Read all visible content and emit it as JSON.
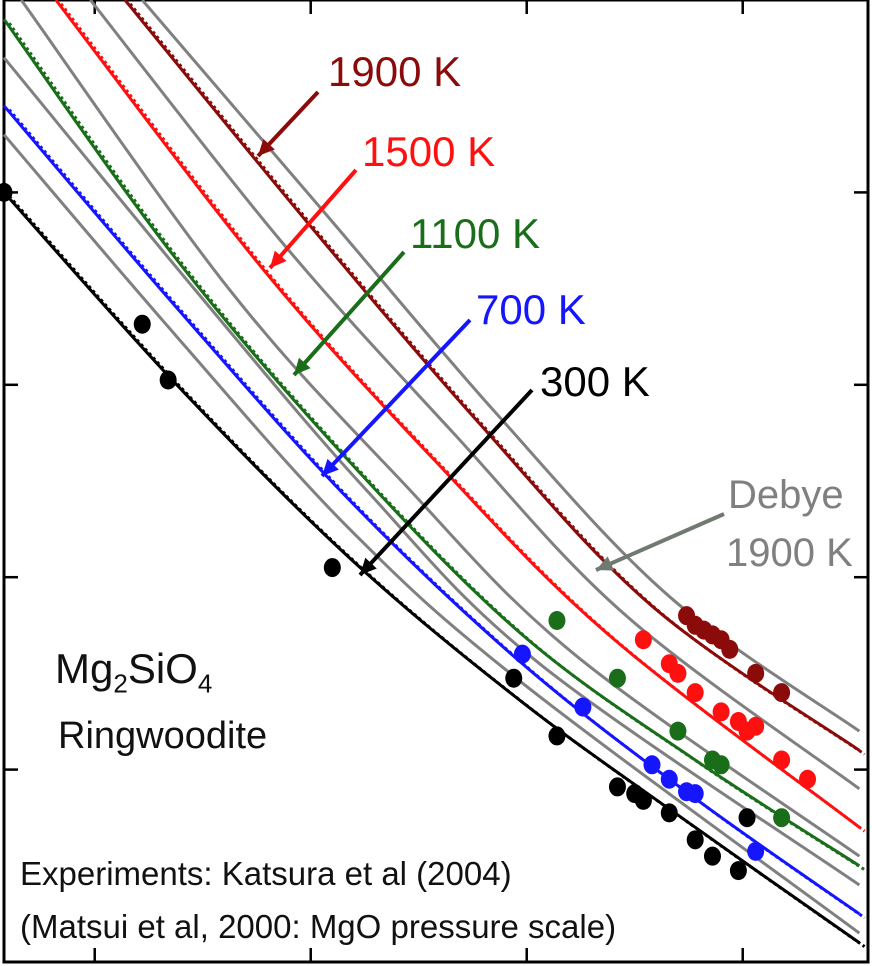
{
  "chart_data": {
    "type": "line",
    "title": "",
    "xlabel": "",
    "ylabel": "",
    "grid": false,
    "x_ticks": 4,
    "y_ticks": 4,
    "mineral": {
      "formula_main": "Mg",
      "sub1": "2",
      "mid": "SiO",
      "sub2": "4",
      "name": "Ringwoodite"
    },
    "caption": [
      "Experiments: Katsura et al (2004)",
      "(Matsui et al, 2000: MgO pressure scale)"
    ],
    "debye_label": [
      "Debye",
      "1900 K"
    ],
    "isotherms": [
      {
        "label": "1900 K",
        "color": "#8b0a0a",
        "line": [
          [
            0.14,
            0.0
          ],
          [
            0.35,
            0.23
          ],
          [
            0.55,
            0.44
          ],
          [
            0.75,
            0.63
          ],
          [
            0.99,
            0.78
          ]
        ],
        "points": [
          [
            0.79,
            0.64
          ],
          [
            0.8,
            0.65
          ],
          [
            0.81,
            0.655
          ],
          [
            0.82,
            0.66
          ],
          [
            0.83,
            0.665
          ],
          [
            0.84,
            0.675
          ],
          [
            0.87,
            0.7
          ],
          [
            0.9,
            0.72
          ]
        ]
      },
      {
        "label": "1500 K",
        "color": "#ff1010",
        "line": [
          [
            0.06,
            0.0
          ],
          [
            0.3,
            0.28
          ],
          [
            0.5,
            0.48
          ],
          [
            0.7,
            0.66
          ],
          [
            0.99,
            0.86
          ]
        ],
        "points": [
          [
            0.74,
            0.665
          ],
          [
            0.77,
            0.69
          ],
          [
            0.78,
            0.7
          ],
          [
            0.8,
            0.72
          ],
          [
            0.83,
            0.74
          ],
          [
            0.85,
            0.75
          ],
          [
            0.86,
            0.76
          ],
          [
            0.87,
            0.755
          ],
          [
            0.9,
            0.79
          ],
          [
            0.93,
            0.81
          ]
        ]
      },
      {
        "label": "1100 K",
        "color": "#1a6e1a",
        "line": [
          [
            0.0,
            0.02
          ],
          [
            0.2,
            0.27
          ],
          [
            0.4,
            0.48
          ],
          [
            0.6,
            0.66
          ],
          [
            0.8,
            0.79
          ],
          [
            0.99,
            0.9
          ]
        ],
        "points": [
          [
            0.64,
            0.645
          ],
          [
            0.71,
            0.705
          ],
          [
            0.78,
            0.76
          ],
          [
            0.82,
            0.79
          ],
          [
            0.83,
            0.795
          ],
          [
            0.9,
            0.85
          ]
        ]
      },
      {
        "label": "700 K",
        "color": "#1515ff",
        "line": [
          [
            0.0,
            0.11
          ],
          [
            0.2,
            0.32
          ],
          [
            0.4,
            0.52
          ],
          [
            0.6,
            0.69
          ],
          [
            0.8,
            0.83
          ],
          [
            0.99,
            0.95
          ]
        ],
        "points": [
          [
            0.6,
            0.68
          ],
          [
            0.67,
            0.735
          ],
          [
            0.75,
            0.795
          ],
          [
            0.77,
            0.81
          ],
          [
            0.79,
            0.823
          ],
          [
            0.8,
            0.825
          ],
          [
            0.87,
            0.885
          ]
        ]
      },
      {
        "label": "300 K",
        "color": "#000000",
        "line": [
          [
            0.0,
            0.2
          ],
          [
            0.2,
            0.4
          ],
          [
            0.4,
            0.58
          ],
          [
            0.6,
            0.73
          ],
          [
            0.8,
            0.86
          ],
          [
            0.99,
            0.98
          ]
        ],
        "points": [
          [
            0.0,
            0.2
          ],
          [
            0.16,
            0.337
          ],
          [
            0.19,
            0.395
          ],
          [
            0.38,
            0.59
          ],
          [
            0.59,
            0.705
          ],
          [
            0.64,
            0.765
          ],
          [
            0.71,
            0.818
          ],
          [
            0.73,
            0.825
          ],
          [
            0.74,
            0.832
          ],
          [
            0.77,
            0.845
          ],
          [
            0.8,
            0.873
          ],
          [
            0.82,
            0.89
          ],
          [
            0.86,
            0.85
          ],
          [
            0.85,
            0.905
          ]
        ]
      }
    ],
    "debye_curves": [
      [
        [
          0.16,
          0.0
        ],
        [
          0.37,
          0.22
        ],
        [
          0.57,
          0.43
        ],
        [
          0.77,
          0.62
        ],
        [
          0.99,
          0.76
        ]
      ],
      [
        [
          0.1,
          0.0
        ],
        [
          0.32,
          0.25
        ],
        [
          0.52,
          0.45
        ],
        [
          0.72,
          0.64
        ],
        [
          0.99,
          0.82
        ]
      ],
      [
        [
          0.02,
          0.0
        ],
        [
          0.26,
          0.3
        ],
        [
          0.46,
          0.5
        ],
        [
          0.66,
          0.68
        ],
        [
          0.99,
          0.89
        ]
      ],
      [
        [
          0.0,
          0.06
        ],
        [
          0.22,
          0.3
        ],
        [
          0.42,
          0.51
        ],
        [
          0.62,
          0.69
        ],
        [
          0.99,
          0.92
        ]
      ],
      [
        [
          0.0,
          0.14
        ],
        [
          0.2,
          0.35
        ],
        [
          0.4,
          0.55
        ],
        [
          0.6,
          0.71
        ],
        [
          0.99,
          0.97
        ]
      ]
    ]
  }
}
